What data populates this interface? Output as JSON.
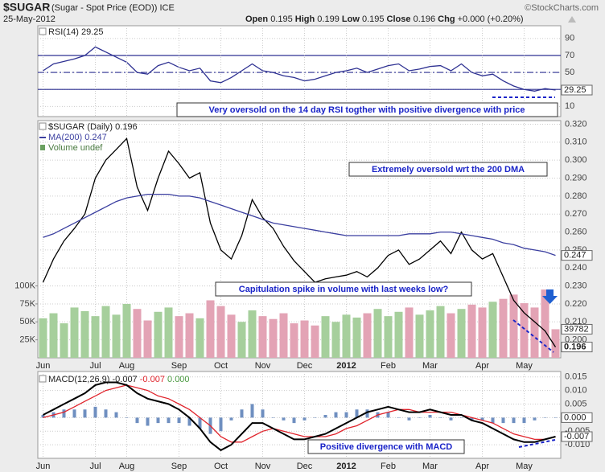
{
  "header": {
    "symbol": "$SUGAR",
    "description": "(Sugar - Spot Price (EOD)) ICE",
    "date": "25-May-2012",
    "source": "©StockCharts.com",
    "quote": [
      {
        "label": "Open",
        "value": 0.195
      },
      {
        "label": "High",
        "value": 0.199
      },
      {
        "label": "Low",
        "value": 0.195
      },
      {
        "label": "Close",
        "value": 0.196
      },
      {
        "label": "Chg",
        "value": "+0.000 (+0.20%)"
      }
    ]
  },
  "chart_data": [
    {
      "type": "line",
      "ylim": [
        -2,
        105
      ],
      "yticks": [
        90,
        70,
        50,
        30,
        10
      ],
      "levels": [
        70,
        50,
        30
      ],
      "level_color": "#2e3192",
      "grid": true,
      "annotation": "Very oversold on the 14 day RSI togther with positive divergence with price",
      "series": [
        {
          "name": "RSI(14)",
          "color": "#2e3192",
          "last_box": true,
          "values": [
            52,
            60,
            63,
            66,
            70,
            80,
            74,
            68,
            62,
            50,
            48,
            58,
            62,
            56,
            52,
            55,
            40,
            38,
            44,
            52,
            60,
            52,
            50,
            46,
            44,
            40,
            42,
            46,
            50,
            52,
            55,
            50,
            54,
            58,
            60,
            52,
            54,
            57,
            58,
            52,
            60,
            50,
            46,
            48,
            40,
            34,
            30,
            28,
            31,
            29.25
          ]
        }
      ]
    },
    {
      "type": "line",
      "ylim": [
        0.19,
        0.322
      ],
      "grid": true,
      "yticks": [
        {
          "value": 0.32,
          "label": "0.320"
        },
        {
          "value": 0.31,
          "label": "0.310"
        },
        {
          "value": 0.3,
          "label": "0.300"
        },
        {
          "value": 0.29,
          "label": "0.290"
        },
        {
          "value": 0.28,
          "label": "0.280"
        },
        {
          "value": 0.27,
          "label": "0.270"
        },
        {
          "value": 0.26,
          "label": "0.260"
        },
        {
          "value": 0.25,
          "label": "0.250"
        },
        {
          "value": 0.24,
          "label": "0.240"
        },
        {
          "value": 0.23,
          "label": "0.230"
        },
        {
          "value": 0.22,
          "label": "0.220"
        },
        {
          "value": 0.21,
          "label": "0.210"
        },
        {
          "value": 0.2,
          "label": "0.200"
        }
      ],
      "y2lim": [
        0,
        330000
      ],
      "y2ticks": [
        {
          "value": 100000,
          "label": "100K"
        },
        {
          "value": 75000,
          "label": "75K"
        },
        {
          "value": 50000,
          "label": "50K"
        },
        {
          "value": 25000,
          "label": "25K"
        }
      ],
      "annotations": [
        "Extremely oversold wrt the 200 DMA",
        "Capitulation spike in volume with last weeks low?"
      ],
      "categories": [
        "Jun",
        null,
        null,
        null,
        null,
        "Jul",
        null,
        null,
        "Aug",
        null,
        null,
        null,
        null,
        "Sep",
        null,
        null,
        null,
        "Oct",
        null,
        null,
        null,
        "Nov",
        null,
        null,
        null,
        "Dec",
        null,
        null,
        null,
        "2012",
        null,
        null,
        null,
        "Feb",
        null,
        null,
        null,
        "Mar",
        null,
        null,
        null,
        null,
        "Apr",
        null,
        null,
        null,
        "May",
        null,
        null,
        null
      ],
      "series": [
        {
          "name": "Volume undef",
          "type": "bar",
          "axis": "y2",
          "color": "#e3a3b5",
          "up_color": "#a6cf9c",
          "last_box": true,
          "values": [
            55000,
            62000,
            48000,
            70000,
            65000,
            58000,
            72000,
            60000,
            75000,
            68000,
            52000,
            64000,
            70000,
            58000,
            62000,
            55000,
            80000,
            72000,
            60000,
            50000,
            66000,
            58000,
            54000,
            62000,
            48000,
            52000,
            45000,
            58000,
            50000,
            60000,
            56000,
            62000,
            68000,
            58000,
            64000,
            70000,
            60000,
            66000,
            72000,
            62000,
            68000,
            74000,
            70000,
            78000,
            82000,
            88000,
            76000,
            70000,
            95000,
            39782
          ]
        },
        {
          "name": "$SUGAR (Daily)",
          "color": "#000000",
          "last_box": true,
          "bold": true,
          "values": [
            0.232,
            0.245,
            0.255,
            0.262,
            0.27,
            0.29,
            0.3,
            0.306,
            0.312,
            0.285,
            0.272,
            0.29,
            0.305,
            0.298,
            0.29,
            0.293,
            0.265,
            0.25,
            0.245,
            0.258,
            0.278,
            0.268,
            0.262,
            0.252,
            0.244,
            0.238,
            0.232,
            0.234,
            0.235,
            0.236,
            0.238,
            0.235,
            0.24,
            0.247,
            0.25,
            0.242,
            0.245,
            0.25,
            0.255,
            0.248,
            0.26,
            0.25,
            0.245,
            0.248,
            0.235,
            0.222,
            0.215,
            0.21,
            0.205,
            0.196
          ]
        },
        {
          "name": "MA(200)",
          "color": "#3b3fa0",
          "last_box": true,
          "values": [
            0.257,
            0.259,
            0.262,
            0.265,
            0.268,
            0.271,
            0.274,
            0.277,
            0.279,
            0.28,
            0.281,
            0.281,
            0.281,
            0.28,
            0.28,
            0.279,
            0.277,
            0.275,
            0.273,
            0.271,
            0.269,
            0.267,
            0.265,
            0.264,
            0.263,
            0.262,
            0.261,
            0.26,
            0.259,
            0.258,
            0.258,
            0.258,
            0.258,
            0.258,
            0.258,
            0.259,
            0.259,
            0.259,
            0.26,
            0.26,
            0.259,
            0.258,
            0.257,
            0.256,
            0.254,
            0.253,
            0.251,
            0.25,
            0.249,
            0.247
          ]
        }
      ]
    },
    {
      "type": "line",
      "ylim": [
        -0.015,
        0.017
      ],
      "grid": true,
      "yticks": [
        0.015,
        {
          "value": 0.01,
          "label": "0.010"
        },
        0.005,
        {
          "value": 0,
          "label": "0.000"
        },
        -0.005,
        {
          "value": -0.01,
          "label": "-0.010"
        }
      ],
      "annotation": "Positive divergence with MACD",
      "categories": [
        "Jun",
        null,
        null,
        null,
        null,
        "Jul",
        null,
        null,
        "Aug",
        null,
        null,
        null,
        null,
        "Sep",
        null,
        null,
        null,
        "Oct",
        null,
        null,
        null,
        "Nov",
        null,
        null,
        null,
        "Dec",
        null,
        null,
        null,
        "2012",
        null,
        null,
        null,
        "Feb",
        null,
        null,
        null,
        "Mar",
        null,
        null,
        null,
        null,
        "Apr",
        null,
        null,
        null,
        "May",
        null,
        null,
        null
      ],
      "series": [
        {
          "name": "Histogram",
          "type": "bar",
          "color": "#6f8fc0",
          "last_label": "0.000",
          "values": [
            0.001,
            0.002,
            0.003,
            0.003,
            0.003,
            0.004,
            0.003,
            0.002,
            0,
            -0.002,
            -0.003,
            -0.002,
            -0.002,
            -0.002,
            -0.003,
            -0.004,
            -0.006,
            -0.005,
            -0.001,
            0.003,
            0.005,
            0.003,
            0,
            -0.001,
            -0.002,
            -0.001,
            0,
            0.001,
            0.002,
            0.002,
            0.003,
            0.003,
            0.002,
            0.002,
            0,
            -0.001,
            0,
            0.001,
            0,
            -0.001,
            0,
            -0.001,
            -0.001,
            -0.002,
            -0.002,
            -0.002,
            -0.002,
            -0.001,
            0,
            0
          ]
        },
        {
          "name": "Signal",
          "color": "#e0242c",
          "values": [
            0,
            0.001,
            0.002,
            0.004,
            0.006,
            0.008,
            0.01,
            0.011,
            0.012,
            0.011,
            0.01,
            0.008,
            0.007,
            0.005,
            0.003,
            0,
            -0.003,
            -0.007,
            -0.009,
            -0.009,
            -0.007,
            -0.005,
            -0.004,
            -0.005,
            -0.006,
            -0.007,
            -0.007,
            -0.007,
            -0.006,
            -0.004,
            -0.003,
            -0.001,
            0.001,
            0.002,
            0.003,
            0.003,
            0.002,
            0.002,
            0.002,
            0.002,
            0.001,
            0,
            -0.001,
            -0.002,
            -0.004,
            -0.006,
            -0.007,
            -0.008,
            -0.008,
            -0.007
          ]
        },
        {
          "name": "MACD(12,26,9)",
          "color": "#000000",
          "width": 2,
          "last_box": true,
          "values": [
            0.001,
            0.003,
            0.005,
            0.007,
            0.009,
            0.012,
            0.013,
            0.013,
            0.012,
            0.009,
            0.007,
            0.006,
            0.005,
            0.003,
            0,
            -0.004,
            -0.009,
            -0.012,
            -0.01,
            -0.006,
            -0.002,
            -0.002,
            -0.004,
            -0.006,
            -0.008,
            -0.008,
            -0.007,
            -0.006,
            -0.004,
            -0.002,
            0,
            0.002,
            0.003,
            0.004,
            0.003,
            0.002,
            0.002,
            0.003,
            0.002,
            0.001,
            0.001,
            -0.001,
            -0.002,
            -0.004,
            -0.006,
            -0.008,
            -0.009,
            -0.009,
            -0.008,
            -0.007
          ]
        }
      ]
    }
  ]
}
